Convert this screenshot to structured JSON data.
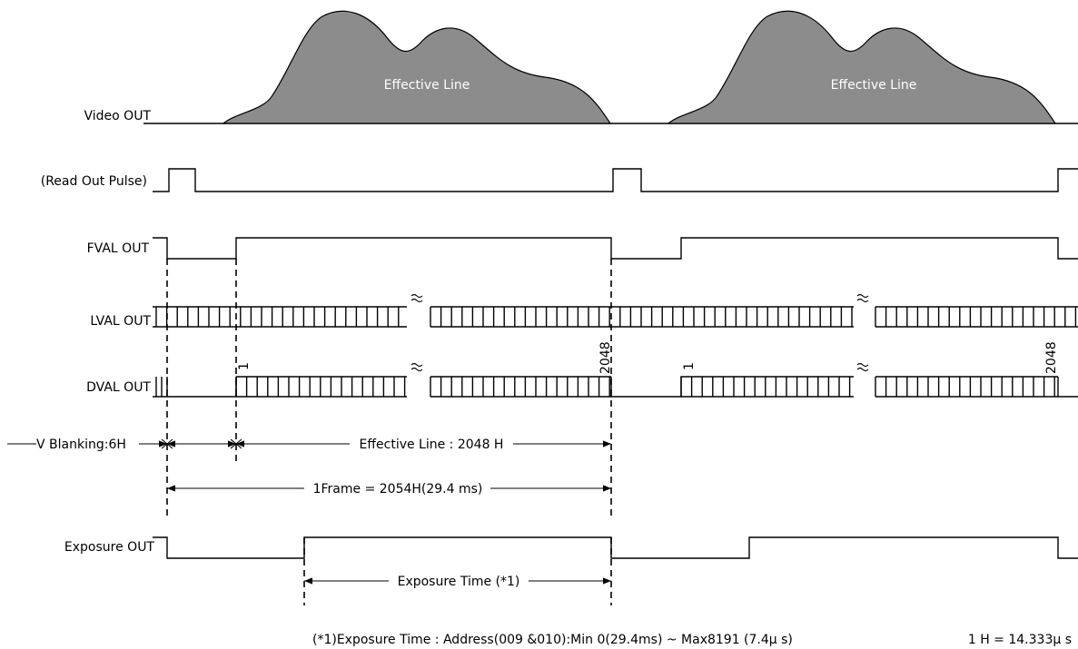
{
  "signals": {
    "video_out": "Video OUT",
    "read_out_pulse": "(Read Out Pulse)",
    "fval_out": "FVAL OUT",
    "lval_out": "LVAL OUT",
    "dval_out": "DVAL OUT",
    "exposure_out": "Exposure OUT"
  },
  "waveform": {
    "label": "Effective Line"
  },
  "line_markers": {
    "first": "1",
    "last": "2048"
  },
  "timing": {
    "v_blanking": "V Blanking:6H",
    "effective_line": "Effective Line : 2048 H",
    "frame": "1Frame = 2054H(29.4 ms)",
    "exposure_time": "Exposure Time (*1)"
  },
  "footnotes": {
    "exposure_note": "(*1)Exposure Time : Address(009 &010):Min 0(29.4ms) ~ Max8191 (7.4μ s)",
    "h_definition": "1 H = 14.333μ s"
  }
}
